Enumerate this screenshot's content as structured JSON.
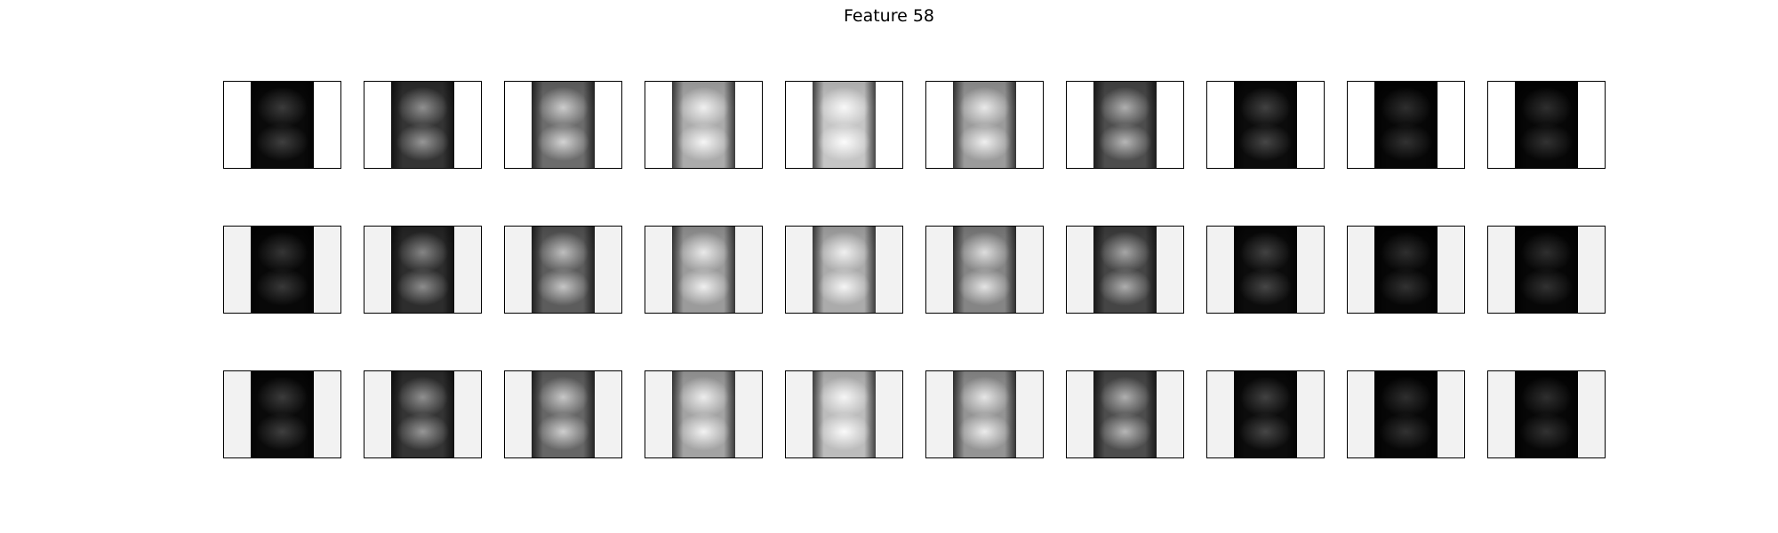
{
  "title": "Feature 58",
  "grid": {
    "rows": 3,
    "cols": 10,
    "row_backgrounds": [
      "#ffffff",
      "#f2f2f2",
      "#f2f2f2"
    ],
    "brightness": [
      [
        0.2,
        0.45,
        0.65,
        0.82,
        0.88,
        0.78,
        0.55,
        0.22,
        0.16,
        0.16
      ],
      [
        0.18,
        0.42,
        0.6,
        0.78,
        0.82,
        0.72,
        0.52,
        0.22,
        0.16,
        0.16
      ],
      [
        0.2,
        0.45,
        0.63,
        0.8,
        0.86,
        0.76,
        0.55,
        0.22,
        0.16,
        0.16
      ]
    ]
  }
}
